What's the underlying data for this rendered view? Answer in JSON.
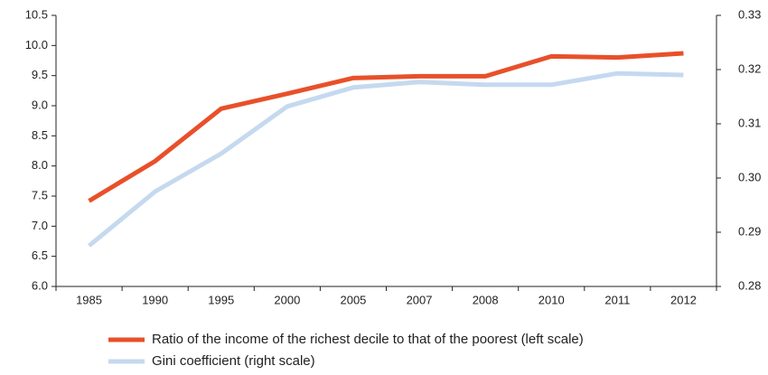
{
  "chart_data": {
    "type": "line",
    "categories": [
      "1985",
      "1990",
      "1995",
      "2000",
      "2005",
      "2007",
      "2008",
      "2010",
      "2011",
      "2012"
    ],
    "series": [
      {
        "name": "Ratio of the income of the richest decile to that of the poorest (left scale)",
        "color": "#e8502a",
        "values": [
          7.42,
          8.08,
          8.95,
          9.2,
          9.46,
          9.49,
          9.49,
          9.82,
          9.8,
          9.87
        ]
      },
      {
        "name": "Gini coefficient (right scale)",
        "color": "#c5d9ef",
        "axis": "y2",
        "values": [
          0.2875,
          0.2975,
          0.3045,
          0.3132,
          0.3167,
          0.3177,
          0.3172,
          0.3172,
          0.3193,
          0.319
        ]
      }
    ],
    "ylim": [
      6,
      10.5
    ],
    "yticks": [
      {
        "value": 6,
        "label": "6.0"
      },
      6.5,
      {
        "value": 7,
        "label": "7.0"
      },
      7.5,
      {
        "value": 8,
        "label": "8.0"
      },
      8.5,
      {
        "value": 9,
        "label": "9.0"
      },
      9.5,
      {
        "value": 10,
        "label": "10.0"
      },
      10.5
    ],
    "y2lim": [
      0.28,
      0.33
    ],
    "y2ticks": [
      0.28,
      0.29,
      {
        "value": 0.3,
        "label": "0.30"
      },
      0.31,
      0.32,
      0.33
    ],
    "grid": false
  }
}
